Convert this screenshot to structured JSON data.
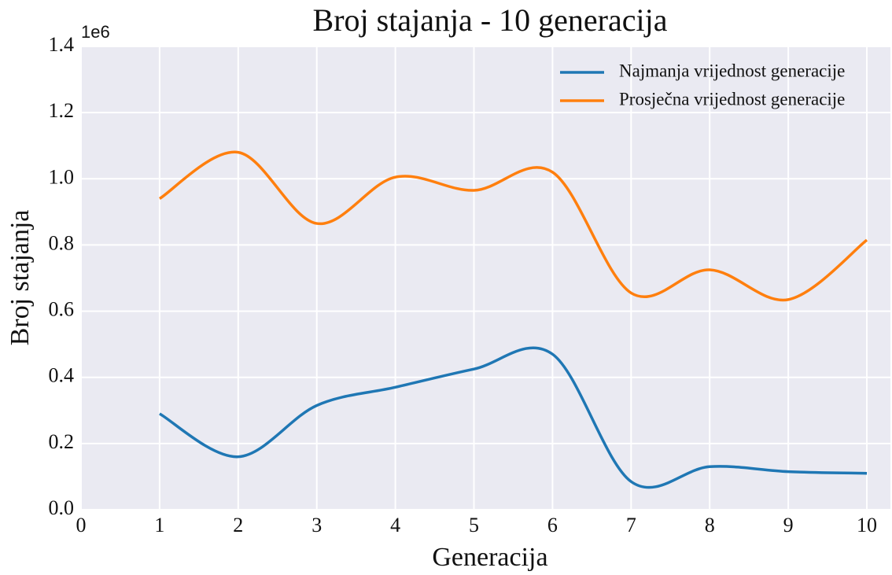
{
  "chart_data": {
    "type": "line",
    "title": "Broj stajanja - 10 generacija",
    "x_label": "Generacija",
    "y_label": "Broj stajanja",
    "y_offset_label": "1e6",
    "x": [
      1,
      2,
      3,
      4,
      5,
      6,
      7,
      8,
      9,
      10
    ],
    "series": [
      {
        "name": "Najmanja vrijednost generacije",
        "color": "#1f77b4",
        "values": [
          290000,
          160000,
          315000,
          370000,
          425000,
          470000,
          85000,
          130000,
          115000,
          110000
        ]
      },
      {
        "name": "Prosječna vrijednost generacije",
        "color": "#ff7f0e",
        "values": [
          940000,
          1080000,
          865000,
          1005000,
          965000,
          1020000,
          655000,
          725000,
          635000,
          815000
        ]
      }
    ],
    "xlim": [
      0,
      10.3
    ],
    "xticks": [
      0,
      1,
      2,
      3,
      4,
      5,
      6,
      7,
      8,
      9,
      10
    ],
    "ylim": [
      0,
      1400000
    ],
    "yticks": [
      {
        "value": 0,
        "label": "0.0"
      },
      {
        "value": 200000,
        "label": "0.2"
      },
      {
        "value": 400000,
        "label": "0.4"
      },
      {
        "value": 600000,
        "label": "0.6"
      },
      {
        "value": 800000,
        "label": "0.8"
      },
      {
        "value": 1000000,
        "label": "1.0"
      },
      {
        "value": 1200000,
        "label": "1.2"
      },
      {
        "value": 1400000,
        "label": "1.4"
      }
    ],
    "grid": true,
    "legend": "upper right"
  }
}
